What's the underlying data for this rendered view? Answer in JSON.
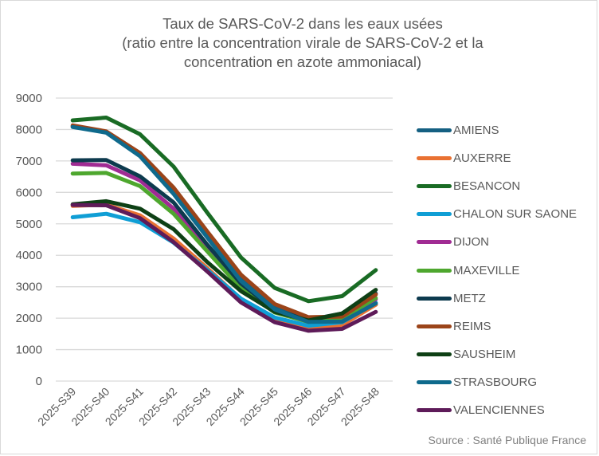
{
  "chart_data": {
    "type": "line",
    "title": "Taux de SARS-CoV-2 dans les eaux usées",
    "subtitle_lines": [
      "(ratio entre la concentration virale de SARS-CoV-2 et la",
      "concentration en azote ammoniacal)"
    ],
    "xlabel": "",
    "ylabel": "",
    "ylim": [
      0,
      9000
    ],
    "yticks": [
      "0",
      "1000",
      "2000",
      "3000",
      "4000",
      "5000",
      "6000",
      "7000",
      "8000",
      "9000"
    ],
    "ytick_values": [
      0,
      1000,
      2000,
      3000,
      4000,
      5000,
      6000,
      7000,
      8000,
      9000
    ],
    "grid": true,
    "legend_position": "right",
    "categories": [
      "2025-S39",
      "2025-S40",
      "2025-S41",
      "2025-S42",
      "2025-S43",
      "2025-S44",
      "2025-S45",
      "2025-S46",
      "2025-S47",
      "2025-S48"
    ],
    "series": [
      {
        "name": "AMIENS",
        "color": "#156082",
        "values": [
          8100,
          7920,
          7180,
          6000,
          4620,
          3250,
          2330,
          1920,
          1920,
          2430
        ]
      },
      {
        "name": "AUXERRE",
        "color": "#e97132",
        "values": [
          5570,
          5610,
          5270,
          4530,
          3590,
          2600,
          1930,
          1690,
          1780,
          2430
        ]
      },
      {
        "name": "BESANCON",
        "color": "#196b24",
        "values": [
          8290,
          8380,
          7850,
          6820,
          5350,
          3930,
          2960,
          2540,
          2700,
          3530
        ]
      },
      {
        "name": "CHALON SUR SAONE",
        "color": "#0f9ed5",
        "values": [
          5210,
          5320,
          5050,
          4400,
          3530,
          2620,
          2020,
          1760,
          1870,
          2490
        ]
      },
      {
        "name": "DIJON",
        "color": "#a02b93",
        "values": [
          6910,
          6860,
          6380,
          5480,
          4200,
          3030,
          2220,
          1900,
          1990,
          2600
        ]
      },
      {
        "name": "MAXEVILLE",
        "color": "#4ea72e",
        "values": [
          6600,
          6620,
          6200,
          5320,
          4120,
          2940,
          2180,
          1880,
          2000,
          2640
        ]
      },
      {
        "name": "METZ",
        "color": "#0d3a4e",
        "values": [
          7020,
          7030,
          6510,
          5680,
          4330,
          3100,
          2260,
          1940,
          2150,
          2780
        ]
      },
      {
        "name": "REIMS",
        "color": "#9b4419",
        "values": [
          8130,
          7940,
          7250,
          6150,
          4750,
          3380,
          2450,
          2030,
          2050,
          2750
        ]
      },
      {
        "name": "SAUSHEIM",
        "color": "#0e4015",
        "values": [
          5620,
          5720,
          5480,
          4830,
          3780,
          2860,
          2200,
          1930,
          2150,
          2900
        ]
      },
      {
        "name": "STRASBOURG",
        "color": "#0f6a8c",
        "values": [
          8080,
          7900,
          7150,
          5950,
          4560,
          3180,
          2280,
          1880,
          1890,
          2470
        ]
      },
      {
        "name": "VALENCIENNES",
        "color": "#5e1b59",
        "values": [
          5600,
          5590,
          5180,
          4420,
          3480,
          2500,
          1870,
          1600,
          1660,
          2200
        ]
      }
    ],
    "annotations": [
      "Source : Santé Publique France"
    ]
  },
  "colors": {
    "text": "#595959",
    "grid": "#d9d9d9",
    "source_text": "#7f7f7f"
  }
}
